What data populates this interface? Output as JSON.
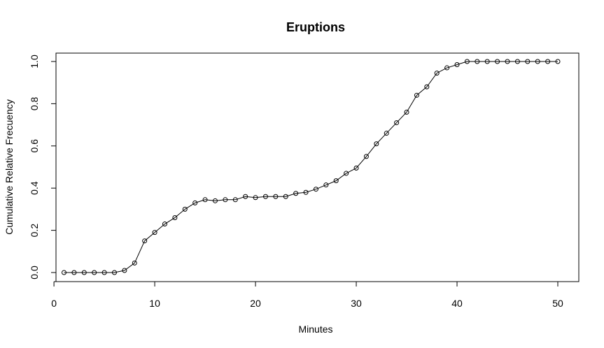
{
  "chart_data": {
    "type": "line",
    "title": "Eruptions",
    "xlabel": "Minutes",
    "ylabel": "Cumulative Relative Frecuency",
    "xlim": [
      1,
      50
    ],
    "ylim": [
      0,
      1
    ],
    "xticks": [
      0,
      10,
      20,
      30,
      40,
      50
    ],
    "yticks": [
      0.0,
      0.2,
      0.4,
      0.6,
      0.8,
      1.0
    ],
    "xtick_labels": [
      "0",
      "10",
      "20",
      "30",
      "40",
      "50"
    ],
    "ytick_labels": [
      "0.0",
      "0.2",
      "0.4",
      "0.6",
      "0.8",
      "1.0"
    ],
    "grid": false,
    "markers": "open-circle",
    "series": [
      {
        "x": [
          1,
          2,
          3,
          4,
          5,
          6,
          7,
          8,
          9,
          10,
          11,
          12,
          13,
          14,
          15,
          16,
          17,
          18,
          19,
          20,
          21,
          22,
          23,
          24,
          25,
          26,
          27,
          28,
          29,
          30,
          31,
          32,
          33,
          34,
          35,
          36,
          37,
          38,
          39,
          40,
          41,
          42,
          43,
          44,
          45,
          46,
          47,
          48,
          49,
          50
        ],
        "values": [
          0.0,
          0.0,
          0.0,
          0.0,
          0.0,
          0.0,
          0.01,
          0.045,
          0.15,
          0.19,
          0.23,
          0.26,
          0.3,
          0.33,
          0.345,
          0.34,
          0.345,
          0.345,
          0.36,
          0.355,
          0.36,
          0.36,
          0.36,
          0.375,
          0.38,
          0.395,
          0.415,
          0.435,
          0.47,
          0.495,
          0.55,
          0.61,
          0.66,
          0.71,
          0.76,
          0.84,
          0.88,
          0.945,
          0.97,
          0.985,
          1.0,
          1.0,
          1.0,
          1.0,
          1.0,
          1.0,
          1.0,
          1.0,
          1.0,
          1.0
        ]
      }
    ]
  }
}
